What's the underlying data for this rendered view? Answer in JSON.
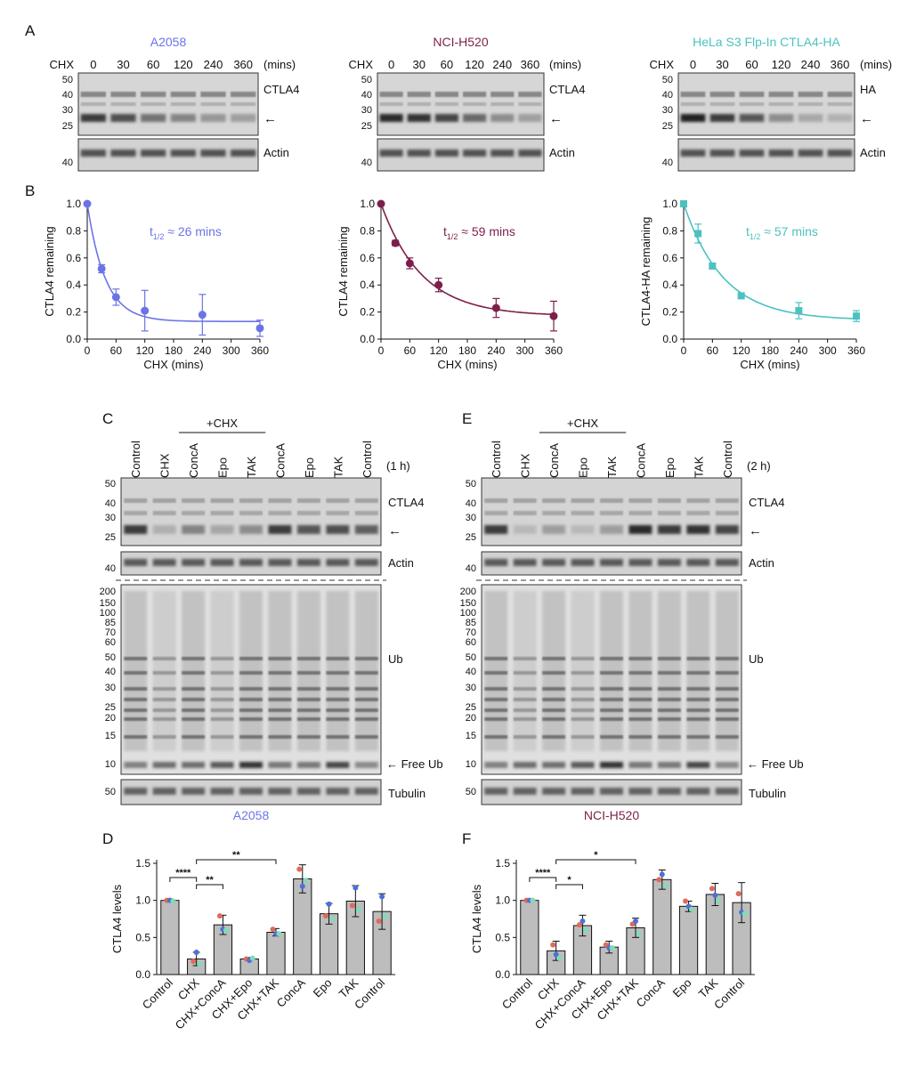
{
  "panel_letters": {
    "A": "A",
    "B": "B",
    "C": "C",
    "D": "D",
    "E": "E",
    "F": "F"
  },
  "colors": {
    "a2058": "#6b74e6",
    "h520": "#7c1f4a",
    "hela": "#4cc2c0",
    "bar": "#bdbdbd",
    "dot_red": "#e06b5a",
    "dot_blue": "#4f6fd6",
    "dot_green": "#7fdcb9"
  },
  "panelA": {
    "cell_lines": [
      "A2058",
      "NCI-H520",
      "HeLa S3 Flp-In CTLA4-HA"
    ],
    "chx_label": "CHX",
    "time_labels": [
      "0",
      "30",
      "60",
      "120",
      "240",
      "360"
    ],
    "unit_label": "(mins)",
    "top_markers": [
      "50",
      "40",
      "30",
      "25"
    ],
    "bottom_markers": [
      "40"
    ],
    "target_labels": [
      "CTLA4",
      "CTLA4",
      "HA"
    ],
    "loading_label": "Actin",
    "arrow": "←"
  },
  "panelB": {
    "x_label": "CHX (mins)",
    "x_ticks": [
      "0",
      "60",
      "120",
      "180",
      "240",
      "300",
      "360"
    ],
    "y_ticks": [
      "0.0",
      "0.2",
      "0.4",
      "0.6",
      "0.8",
      "1.0"
    ],
    "y_labels": [
      "CTLA4 remaining",
      "CTLA4 remaining",
      "CTLA4-HA remaining"
    ],
    "halflife_prefix": "t",
    "halflife_sub": "1/2",
    "halflife_values": [
      "≈ 26 mins",
      "≈ 59 mins",
      "≈ 57 mins"
    ]
  },
  "panelCE": {
    "lane_labels": [
      "Control",
      "CHX",
      "ConcA",
      "Epo",
      "TAK",
      "ConcA",
      "Epo",
      "TAK",
      "Control"
    ],
    "chx_group_label": "+CHX",
    "time_labels": [
      "(1 h)",
      "(2 h)"
    ],
    "ctla4_label": "CTLA4",
    "actin_label": "Actin",
    "ub_label": "Ub",
    "free_ub_label": "Free Ub",
    "tubulin_label": "Tubulin",
    "arrow": "←",
    "ctla4_markers": [
      "50",
      "40",
      "30",
      "25"
    ],
    "actin_markers": [
      "40"
    ],
    "ub_markers": [
      "200",
      "150",
      "100",
      "85",
      "70",
      "60",
      "50",
      "40",
      "30",
      "25",
      "20",
      "15",
      "10"
    ],
    "tubulin_markers": [
      "50"
    ],
    "cell_lines": [
      "A2058",
      "NCI-H520"
    ]
  },
  "chart_data": [
    {
      "type": "scatter",
      "panel": "B",
      "cell_line": "A2058",
      "fit": "one-phase exponential decay",
      "x": [
        0,
        30,
        60,
        120,
        240,
        360
      ],
      "y": [
        1.0,
        0.52,
        0.31,
        0.21,
        0.18,
        0.08
      ],
      "error": [
        0,
        0.03,
        0.06,
        0.15,
        0.15,
        0.06
      ],
      "plateau": 0.13,
      "half_life_min": 26,
      "xlabel": "CHX (mins)",
      "ylabel": "CTLA4 remaining",
      "xlim": [
        0,
        360
      ],
      "ylim": [
        0,
        1.0
      ],
      "marker": "circle"
    },
    {
      "type": "scatter",
      "panel": "B",
      "cell_line": "NCI-H520",
      "fit": "one-phase exponential decay",
      "x": [
        0,
        30,
        60,
        120,
        240,
        360
      ],
      "y": [
        1.0,
        0.71,
        0.56,
        0.4,
        0.23,
        0.17
      ],
      "error": [
        0,
        0.02,
        0.04,
        0.05,
        0.07,
        0.11
      ],
      "plateau": 0.17,
      "half_life_min": 59,
      "xlabel": "CHX (mins)",
      "ylabel": "CTLA4 remaining",
      "xlim": [
        0,
        360
      ],
      "ylim": [
        0,
        1.0
      ],
      "marker": "circle"
    },
    {
      "type": "scatter",
      "panel": "B",
      "cell_line": "HeLa S3 Flp-In CTLA4-HA",
      "fit": "one-phase exponential decay",
      "x": [
        0,
        30,
        60,
        120,
        240,
        360
      ],
      "y": [
        1.0,
        0.78,
        0.54,
        0.32,
        0.21,
        0.17
      ],
      "error": [
        0,
        0.07,
        0.02,
        0.02,
        0.06,
        0.04
      ],
      "plateau": 0.14,
      "half_life_min": 57,
      "xlabel": "CHX (mins)",
      "ylabel": "CTLA4-HA remaining",
      "xlim": [
        0,
        360
      ],
      "ylim": [
        0,
        1.0
      ],
      "marker": "square"
    },
    {
      "type": "bar",
      "panel": "D",
      "cell_line": "A2058",
      "categories": [
        "Control",
        "CHX",
        "CHX+ConcA",
        "CHX+Epo",
        "CHX+TAK",
        "ConcA",
        "Epo",
        "TAK",
        "Control"
      ],
      "values": [
        1.0,
        0.21,
        0.67,
        0.21,
        0.57,
        1.29,
        0.82,
        0.99,
        0.85
      ],
      "error": [
        0.02,
        0.09,
        0.13,
        0.02,
        0.05,
        0.19,
        0.14,
        0.21,
        0.24
      ],
      "points": [
        [
          1.0,
          1.0,
          0.99
        ],
        [
          0.18,
          0.3,
          0.14
        ],
        [
          0.79,
          0.61,
          0.6
        ],
        [
          0.21,
          0.19,
          0.22
        ],
        [
          0.61,
          0.55,
          0.55
        ],
        [
          1.42,
          1.19,
          1.27
        ],
        [
          0.79,
          0.95,
          0.75
        ],
        [
          0.93,
          1.17,
          0.88
        ],
        [
          0.72,
          1.05,
          0.79
        ]
      ],
      "significance": [
        {
          "from": 0,
          "to": 1,
          "label": "****"
        },
        {
          "from": 1,
          "to": 2,
          "label": "**"
        },
        {
          "from": 1,
          "to": 4,
          "label": "**"
        }
      ],
      "xlabel": "",
      "ylabel": "CTLA4 levels",
      "ylim": [
        0,
        1.5
      ],
      "y_ticks": [
        "0.0",
        "0.5",
        "1.0",
        "1.5"
      ]
    },
    {
      "type": "bar",
      "panel": "F",
      "cell_line": "NCI-H520",
      "categories": [
        "Control",
        "CHX",
        "CHX+ConcA",
        "CHX+Epo",
        "CHX+TAK",
        "ConcA",
        "Epo",
        "TAK",
        "Control"
      ],
      "values": [
        1.0,
        0.32,
        0.66,
        0.37,
        0.63,
        1.28,
        0.92,
        1.08,
        0.97
      ],
      "error": [
        0.02,
        0.13,
        0.14,
        0.08,
        0.13,
        0.13,
        0.07,
        0.15,
        0.27
      ],
      "points": [
        [
          1.0,
          1.0,
          1.0
        ],
        [
          0.4,
          0.27,
          0.22
        ],
        [
          0.67,
          0.72,
          0.6
        ],
        [
          0.4,
          0.36,
          0.36
        ],
        [
          0.68,
          0.72,
          0.55
        ],
        [
          1.28,
          1.35,
          1.2
        ],
        [
          0.99,
          0.92,
          0.88
        ],
        [
          1.16,
          1.07,
          1.0
        ],
        [
          1.09,
          0.84,
          0.82
        ]
      ],
      "significance": [
        {
          "from": 0,
          "to": 1,
          "label": "****"
        },
        {
          "from": 1,
          "to": 2,
          "label": "*"
        },
        {
          "from": 1,
          "to": 4,
          "label": "*"
        }
      ],
      "xlabel": "",
      "ylabel": "CTLA4 levels",
      "ylim": [
        0,
        1.5
      ],
      "y_ticks": [
        "0.0",
        "0.5",
        "1.0",
        "1.5"
      ]
    }
  ]
}
